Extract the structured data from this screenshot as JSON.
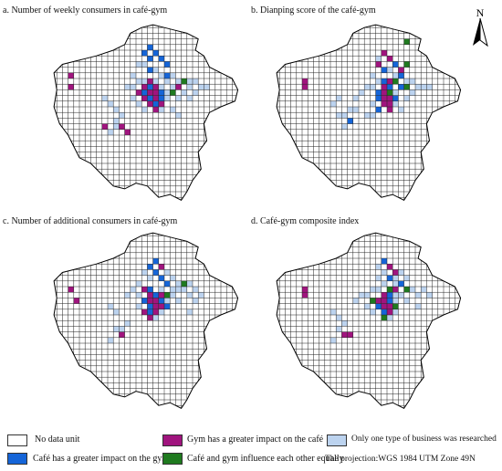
{
  "panels": [
    {
      "title": "a. Number of  weekly consumers in café-gym"
    },
    {
      "title": "b. Dianping score of the café-gym"
    },
    {
      "title": "c. Number of additional consumers in café-gym"
    },
    {
      "title": "d. Café-gym composite index"
    }
  ],
  "north_label": "N",
  "legend": {
    "no_data": "No data unit",
    "gym_greater": "Gym has a greater impact on the café",
    "only_one": "Only one type of business was researched",
    "cafe_greater": "Café has a greater impact on the gym",
    "equal": "Café and gym influence each other equally",
    "projection": "The projection:WGS 1984 UTM Zone 49N"
  },
  "colors": {
    "no_data": "#ffffff",
    "gym_greater": "#a0147e",
    "only_one": "#bcd3ef",
    "cafe_greater": "#1565d8",
    "equal": "#1f7a1f",
    "grid_line": "#222222"
  },
  "map_data": {
    "description_cells_note": "cell categories per panel as [col,row,category]; categories: gym, cafe, equal, one",
    "panels": [
      {
        "cells": [
          [
            17,
            4,
            "cafe"
          ],
          [
            16,
            5,
            "cafe"
          ],
          [
            18,
            5,
            "cafe"
          ],
          [
            17,
            6,
            "cafe"
          ],
          [
            19,
            6,
            "cafe"
          ],
          [
            20,
            7,
            "cafe"
          ],
          [
            15,
            7,
            "one"
          ],
          [
            16,
            7,
            "one"
          ],
          [
            17,
            8,
            "cafe"
          ],
          [
            18,
            8,
            "one"
          ],
          [
            19,
            9,
            "one"
          ],
          [
            20,
            9,
            "cafe"
          ],
          [
            21,
            9,
            "one"
          ],
          [
            14,
            9,
            "one"
          ],
          [
            15,
            10,
            "one"
          ],
          [
            16,
            10,
            "one"
          ],
          [
            17,
            10,
            "gym"
          ],
          [
            18,
            10,
            "one"
          ],
          [
            20,
            10,
            "one"
          ],
          [
            22,
            10,
            "one"
          ],
          [
            23,
            10,
            "equal"
          ],
          [
            24,
            10,
            "one"
          ],
          [
            25,
            10,
            "one"
          ],
          [
            26,
            11,
            "one"
          ],
          [
            27,
            11,
            "one"
          ],
          [
            13,
            11,
            "one"
          ],
          [
            14,
            11,
            "one"
          ],
          [
            16,
            11,
            "gym"
          ],
          [
            17,
            11,
            "cafe"
          ],
          [
            18,
            11,
            "gym"
          ],
          [
            19,
            11,
            "one"
          ],
          [
            21,
            11,
            "one"
          ],
          [
            22,
            11,
            "gym"
          ],
          [
            24,
            11,
            "one"
          ],
          [
            15,
            12,
            "gym"
          ],
          [
            16,
            12,
            "cafe"
          ],
          [
            17,
            12,
            "gym"
          ],
          [
            18,
            12,
            "gym"
          ],
          [
            19,
            12,
            "cafe"
          ],
          [
            20,
            12,
            "one"
          ],
          [
            21,
            12,
            "equal"
          ],
          [
            23,
            12,
            "one"
          ],
          [
            14,
            13,
            "one"
          ],
          [
            16,
            13,
            "gym"
          ],
          [
            17,
            13,
            "cafe"
          ],
          [
            18,
            13,
            "gym"
          ],
          [
            19,
            13,
            "cafe"
          ],
          [
            20,
            13,
            "one"
          ],
          [
            15,
            14,
            "one"
          ],
          [
            17,
            14,
            "gym"
          ],
          [
            18,
            14,
            "cafe"
          ],
          [
            19,
            14,
            "gym"
          ],
          [
            16,
            15,
            "one"
          ],
          [
            18,
            15,
            "gym"
          ],
          [
            19,
            15,
            "one"
          ],
          [
            3,
            9,
            "gym"
          ],
          [
            3,
            11,
            "gym"
          ],
          [
            9,
            18,
            "gym"
          ],
          [
            12,
            18,
            "gym"
          ],
          [
            13,
            19,
            "gym"
          ],
          [
            10,
            19,
            "one"
          ],
          [
            11,
            18,
            "one"
          ],
          [
            12,
            16,
            "one"
          ],
          [
            11,
            17,
            "one"
          ],
          [
            10,
            14,
            "one"
          ],
          [
            11,
            15,
            "one"
          ],
          [
            9,
            13,
            "one"
          ],
          [
            22,
            13,
            "one"
          ],
          [
            24,
            13,
            "one"
          ],
          [
            25,
            12,
            "one"
          ],
          [
            21,
            15,
            "one"
          ],
          [
            22,
            16,
            "one"
          ]
        ]
      },
      {
        "cells": [
          [
            23,
            3,
            "equal"
          ],
          [
            19,
            5,
            "gym"
          ],
          [
            20,
            6,
            "gym"
          ],
          [
            18,
            6,
            "one"
          ],
          [
            21,
            7,
            "cafe"
          ],
          [
            18,
            7,
            "gym"
          ],
          [
            23,
            7,
            "equal"
          ],
          [
            19,
            8,
            "cafe"
          ],
          [
            20,
            8,
            "one"
          ],
          [
            22,
            8,
            "gym"
          ],
          [
            21,
            9,
            "one"
          ],
          [
            22,
            9,
            "cafe"
          ],
          [
            17,
            9,
            "one"
          ],
          [
            18,
            10,
            "one"
          ],
          [
            19,
            10,
            "cafe"
          ],
          [
            20,
            10,
            "gym"
          ],
          [
            21,
            10,
            "equal"
          ],
          [
            23,
            10,
            "one"
          ],
          [
            24,
            10,
            "one"
          ],
          [
            16,
            11,
            "one"
          ],
          [
            17,
            11,
            "one"
          ],
          [
            19,
            11,
            "gym"
          ],
          [
            20,
            11,
            "cafe"
          ],
          [
            22,
            11,
            "cafe"
          ],
          [
            23,
            11,
            "equal"
          ],
          [
            25,
            11,
            "one"
          ],
          [
            15,
            12,
            "one"
          ],
          [
            18,
            12,
            "cafe"
          ],
          [
            19,
            12,
            "gym"
          ],
          [
            20,
            12,
            "equal"
          ],
          [
            21,
            12,
            "one"
          ],
          [
            24,
            12,
            "one"
          ],
          [
            14,
            13,
            "one"
          ],
          [
            18,
            13,
            "cafe"
          ],
          [
            19,
            13,
            "gym"
          ],
          [
            20,
            13,
            "gym"
          ],
          [
            21,
            13,
            "cafe"
          ],
          [
            23,
            13,
            "one"
          ],
          [
            17,
            14,
            "one"
          ],
          [
            19,
            14,
            "gym"
          ],
          [
            20,
            14,
            "gym"
          ],
          [
            21,
            14,
            "one"
          ],
          [
            18,
            15,
            "cafe"
          ],
          [
            20,
            15,
            "gym"
          ],
          [
            22,
            15,
            "one"
          ],
          [
            16,
            16,
            "one"
          ],
          [
            17,
            16,
            "one"
          ],
          [
            5,
            10,
            "gym"
          ],
          [
            5,
            11,
            "gym"
          ],
          [
            11,
            16,
            "one"
          ],
          [
            12,
            16,
            "one"
          ],
          [
            13,
            17,
            "cafe"
          ],
          [
            12,
            18,
            "one"
          ],
          [
            13,
            15,
            "one"
          ],
          [
            14,
            15,
            "one"
          ],
          [
            10,
            14,
            "one"
          ],
          [
            11,
            13,
            "one"
          ],
          [
            26,
            11,
            "one"
          ],
          [
            27,
            11,
            "one"
          ]
        ]
      },
      {
        "cells": [
          [
            18,
            5,
            "cafe"
          ],
          [
            17,
            6,
            "cafe"
          ],
          [
            19,
            6,
            "gym"
          ],
          [
            16,
            7,
            "one"
          ],
          [
            18,
            7,
            "cafe"
          ],
          [
            20,
            7,
            "one"
          ],
          [
            17,
            8,
            "one"
          ],
          [
            19,
            8,
            "cafe"
          ],
          [
            21,
            8,
            "one"
          ],
          [
            20,
            9,
            "cafe"
          ],
          [
            22,
            9,
            "one"
          ],
          [
            23,
            9,
            "equal"
          ],
          [
            24,
            9,
            "one"
          ],
          [
            15,
            9,
            "one"
          ],
          [
            14,
            10,
            "one"
          ],
          [
            16,
            10,
            "gym"
          ],
          [
            17,
            10,
            "cafe"
          ],
          [
            19,
            10,
            "one"
          ],
          [
            21,
            10,
            "one"
          ],
          [
            22,
            10,
            "one"
          ],
          [
            23,
            10,
            "one"
          ],
          [
            25,
            10,
            "one"
          ],
          [
            13,
            11,
            "one"
          ],
          [
            15,
            11,
            "one"
          ],
          [
            17,
            11,
            "gym"
          ],
          [
            18,
            11,
            "cafe"
          ],
          [
            19,
            11,
            "gym"
          ],
          [
            20,
            11,
            "equal"
          ],
          [
            21,
            11,
            "one"
          ],
          [
            24,
            11,
            "one"
          ],
          [
            26,
            11,
            "one"
          ],
          [
            16,
            12,
            "cafe"
          ],
          [
            17,
            12,
            "gym"
          ],
          [
            18,
            12,
            "gym"
          ],
          [
            19,
            12,
            "cafe"
          ],
          [
            20,
            12,
            "one"
          ],
          [
            22,
            12,
            "one"
          ],
          [
            15,
            13,
            "one"
          ],
          [
            17,
            13,
            "cafe"
          ],
          [
            18,
            13,
            "gym"
          ],
          [
            19,
            13,
            "gym"
          ],
          [
            20,
            13,
            "cafe"
          ],
          [
            16,
            14,
            "gym"
          ],
          [
            17,
            14,
            "cafe"
          ],
          [
            18,
            14,
            "gym"
          ],
          [
            19,
            14,
            "one"
          ],
          [
            17,
            15,
            "gym"
          ],
          [
            18,
            15,
            "one"
          ],
          [
            3,
            10,
            "gym"
          ],
          [
            4,
            12,
            "gym"
          ],
          [
            11,
            17,
            "one"
          ],
          [
            12,
            17,
            "one"
          ],
          [
            12,
            18,
            "gym"
          ],
          [
            10,
            19,
            "one"
          ],
          [
            13,
            16,
            "one"
          ],
          [
            11,
            14,
            "one"
          ],
          [
            10,
            13,
            "one"
          ],
          [
            24,
            14,
            "one"
          ],
          [
            25,
            12,
            "one"
          ]
        ]
      },
      {
        "cells": [
          [
            19,
            5,
            "cafe"
          ],
          [
            18,
            6,
            "one"
          ],
          [
            20,
            6,
            "gym"
          ],
          [
            19,
            7,
            "one"
          ],
          [
            21,
            7,
            "gym"
          ],
          [
            22,
            7,
            "one"
          ],
          [
            18,
            8,
            "one"
          ],
          [
            20,
            8,
            "cafe"
          ],
          [
            21,
            8,
            "one"
          ],
          [
            23,
            8,
            "one"
          ],
          [
            19,
            9,
            "one"
          ],
          [
            21,
            9,
            "one"
          ],
          [
            22,
            9,
            "cafe"
          ],
          [
            17,
            10,
            "one"
          ],
          [
            18,
            10,
            "one"
          ],
          [
            20,
            10,
            "equal"
          ],
          [
            21,
            10,
            "gym"
          ],
          [
            23,
            10,
            "equal"
          ],
          [
            24,
            10,
            "one"
          ],
          [
            26,
            10,
            "one"
          ],
          [
            15,
            11,
            "one"
          ],
          [
            16,
            11,
            "one"
          ],
          [
            19,
            11,
            "gym"
          ],
          [
            20,
            11,
            "cafe"
          ],
          [
            21,
            11,
            "one"
          ],
          [
            22,
            11,
            "one"
          ],
          [
            25,
            11,
            "one"
          ],
          [
            27,
            11,
            "one"
          ],
          [
            14,
            12,
            "one"
          ],
          [
            17,
            12,
            "equal"
          ],
          [
            18,
            12,
            "gym"
          ],
          [
            19,
            12,
            "gym"
          ],
          [
            20,
            12,
            "cafe"
          ],
          [
            21,
            12,
            "one"
          ],
          [
            23,
            12,
            "one"
          ],
          [
            16,
            13,
            "one"
          ],
          [
            18,
            13,
            "cafe"
          ],
          [
            19,
            13,
            "gym"
          ],
          [
            20,
            13,
            "gym"
          ],
          [
            21,
            13,
            "equal"
          ],
          [
            17,
            14,
            "one"
          ],
          [
            19,
            14,
            "cafe"
          ],
          [
            20,
            14,
            "gym"
          ],
          [
            21,
            14,
            "one"
          ],
          [
            19,
            15,
            "equal"
          ],
          [
            20,
            15,
            "one"
          ],
          [
            5,
            10,
            "gym"
          ],
          [
            5,
            11,
            "gym"
          ],
          [
            11,
            17,
            "one"
          ],
          [
            12,
            18,
            "gym"
          ],
          [
            13,
            18,
            "gym"
          ],
          [
            10,
            19,
            "one"
          ],
          [
            12,
            16,
            "one"
          ],
          [
            11,
            15,
            "one"
          ],
          [
            10,
            14,
            "one"
          ],
          [
            27,
            11,
            "one"
          ],
          [
            25,
            13,
            "one"
          ]
        ]
      }
    ]
  }
}
